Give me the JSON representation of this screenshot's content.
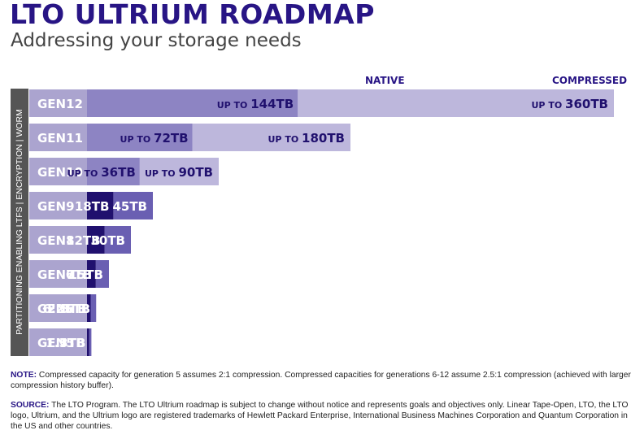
{
  "title": "LTO ULTRIUM ROADMAP",
  "subtitle": "Addressing your storage needs",
  "side_label": "PARTITIONING ENABLING LTFS  |  ENCRYPTION  |  WORM",
  "colors": {
    "title": "#281585",
    "gen_label_bg": "#ABA4CF",
    "native_dark": "#20106E",
    "compressed_dark": "#6A5FB2",
    "native_light": "#8D84C3",
    "compressed_light": "#BDB7DC",
    "side_bar": "#555555"
  },
  "chart_data": {
    "type": "bar",
    "orientation": "horizontal",
    "column_headers": [
      "NATIVE",
      "COMPRESSED"
    ],
    "categories": [
      "GEN12",
      "GEN11",
      "GEN10",
      "GEN9",
      "GEN8",
      "GEN7",
      "GEN6",
      "GEN5"
    ],
    "series": [
      {
        "name": "NATIVE",
        "values": [
          144,
          72,
          36,
          18,
          12,
          6,
          2.5,
          1.5
        ],
        "labels": [
          "144TB",
          "72TB",
          "36TB",
          "18TB",
          "12TB",
          "6TB",
          "2.5TB",
          "1.5TB"
        ],
        "prefixes": [
          "UP TO",
          "UP TO",
          "UP TO",
          "",
          "",
          "",
          "",
          ""
        ]
      },
      {
        "name": "COMPRESSED",
        "values": [
          360,
          180,
          90,
          45,
          30,
          15,
          6.25,
          3
        ],
        "labels": [
          "360TB",
          "180TB",
          "90TB",
          "45TB",
          "30TB",
          "15TB",
          "6.25TB",
          "3TB"
        ],
        "prefixes": [
          "UP TO",
          "UP TO",
          "UP TO",
          "",
          "",
          "",
          "",
          ""
        ]
      }
    ],
    "future": [
      true,
      true,
      true,
      false,
      false,
      false,
      false,
      false
    ]
  },
  "note": {
    "label": "NOTE:",
    "text": "Compressed capacity for generation 5 assumes 2:1 compression. Compressed capacities for generations 6-12 assume 2.5:1 compression (achieved with larger compression history buffer)."
  },
  "source": {
    "label": "SOURCE:",
    "text": "The LTO Program. The LTO Ultrium roadmap is subject to change without notice and represents goals and objectives only. Linear Tape-Open, LTO, the LTO logo, Ultrium, and the Ultrium logo are registered trademarks of Hewlett Packard Enterprise, International Business Machines Corporation and Quantum Corporation in the US and other countries."
  }
}
